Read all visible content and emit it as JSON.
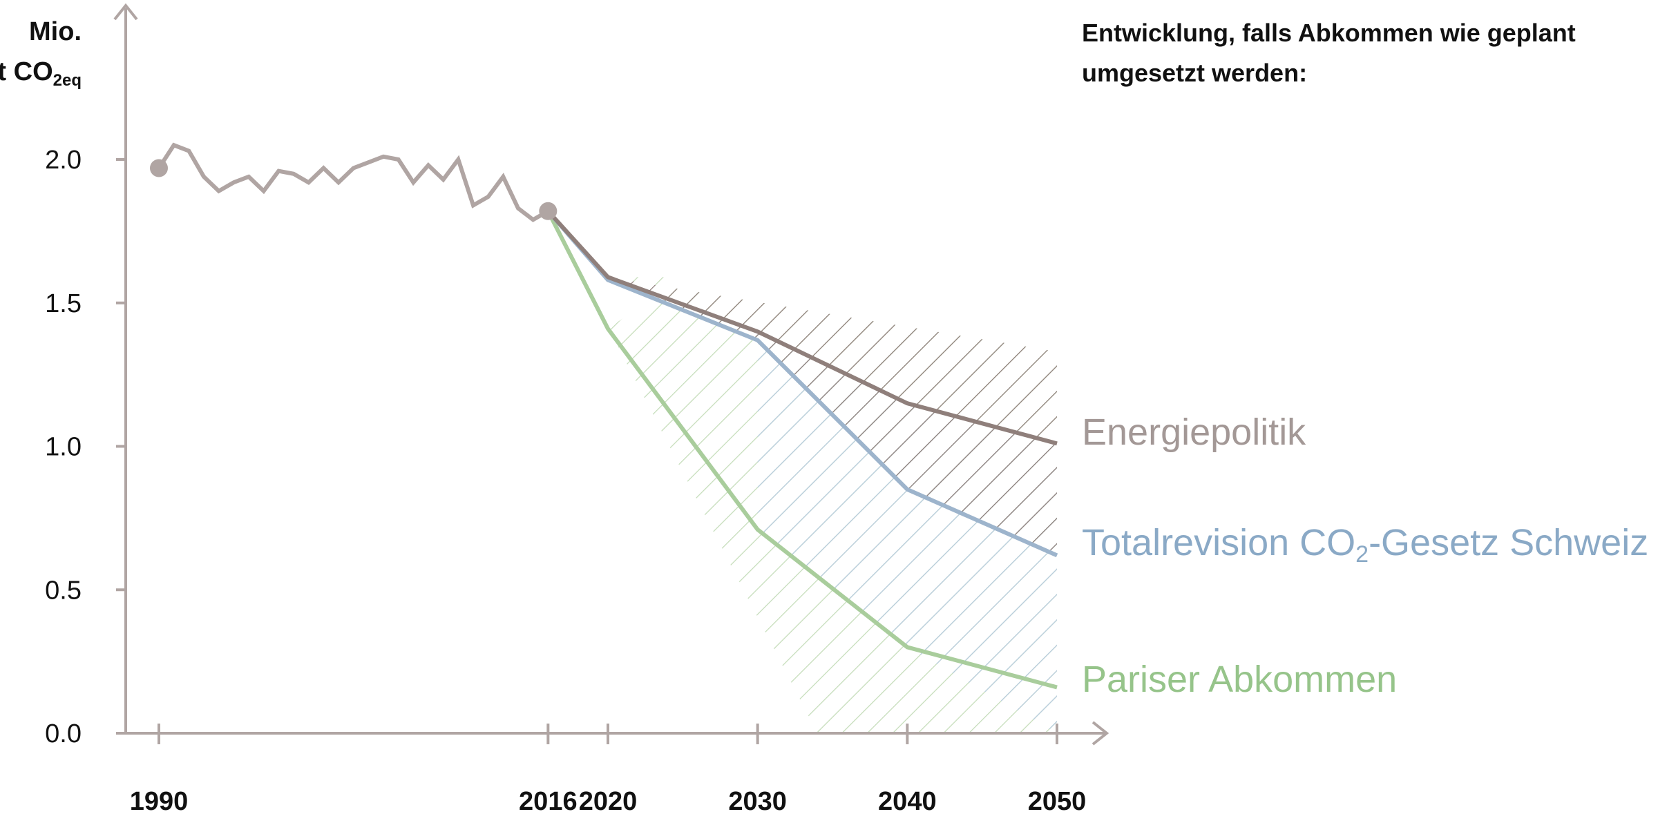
{
  "chart_data": {
    "type": "line",
    "y_unit_line1": "Mio.",
    "y_unit_line2": "t CO",
    "y_unit_sub": "2eq",
    "legend_title_line1": "Entwicklung, falls Abkommen wie geplant",
    "legend_title_line2": "umgesetzt werden:",
    "ylim": [
      0,
      2.5
    ],
    "xlim": [
      1988,
      2053
    ],
    "y_ticks": [
      {
        "value": 0.0,
        "label": "0.0"
      },
      {
        "value": 0.5,
        "label": "0.5"
      },
      {
        "value": 1.0,
        "label": "1.0"
      },
      {
        "value": 1.5,
        "label": "1.5"
      },
      {
        "value": 2.0,
        "label": "2.0"
      }
    ],
    "x_ticks": [
      {
        "value": 1990,
        "label": "1990"
      },
      {
        "value": 2016,
        "label": "2016"
      },
      {
        "value": 2020,
        "label": "2020"
      },
      {
        "value": 2030,
        "label": "2030"
      },
      {
        "value": 2040,
        "label": "2040"
      },
      {
        "value": 2050,
        "label": "2050"
      }
    ],
    "grid": false,
    "historical": {
      "color": "#b0a5a3",
      "x": [
        1990,
        1991,
        1992,
        1993,
        1994,
        1995,
        1996,
        1997,
        1998,
        1999,
        2000,
        2001,
        2002,
        2003,
        2004,
        2005,
        2006,
        2007,
        2008,
        2009,
        2010,
        2011,
        2012,
        2013,
        2014,
        2015,
        2016
      ],
      "y": [
        1.97,
        2.05,
        2.03,
        1.94,
        1.89,
        1.92,
        1.94,
        1.89,
        1.96,
        1.95,
        1.92,
        1.97,
        1.92,
        1.97,
        1.99,
        2.01,
        2.0,
        1.92,
        1.98,
        1.93,
        2.0,
        1.84,
        1.87,
        1.94,
        1.83,
        1.79,
        1.82
      ],
      "markers": [
        {
          "x": 1990,
          "y": 1.97
        },
        {
          "x": 2016,
          "y": 1.82
        }
      ]
    },
    "series": [
      {
        "name": "Energiepolitik",
        "color": "#8f7f7b",
        "label_color": "#a39896",
        "x": [
          2016,
          2020,
          2030,
          2040,
          2050
        ],
        "y": [
          1.82,
          1.59,
          1.4,
          1.15,
          1.01
        ]
      },
      {
        "name": "Totalrevision CO",
        "name_sub": "2",
        "name_rest": "-Gesetz Schweiz",
        "color": "#9db4cc",
        "label_color": "#8aa9c6",
        "x": [
          2016,
          2020,
          2030,
          2040,
          2050
        ],
        "y": [
          1.82,
          1.58,
          1.37,
          0.85,
          0.62
        ]
      },
      {
        "name": "Pariser Abkommen",
        "color": "#a9cd9c",
        "label_color": "#96c48a",
        "x": [
          2016,
          2020,
          2030,
          2040,
          2050
        ],
        "y": [
          1.82,
          1.41,
          0.71,
          0.3,
          0.16
        ]
      }
    ],
    "hatch_region": {
      "upper": [
        [
          2020,
          1.59
        ],
        [
          2050,
          1.33
        ]
      ],
      "lower": [
        [
          2016,
          1.82
        ],
        [
          2034,
          0.0
        ],
        [
          2050,
          0.0
        ]
      ]
    }
  }
}
